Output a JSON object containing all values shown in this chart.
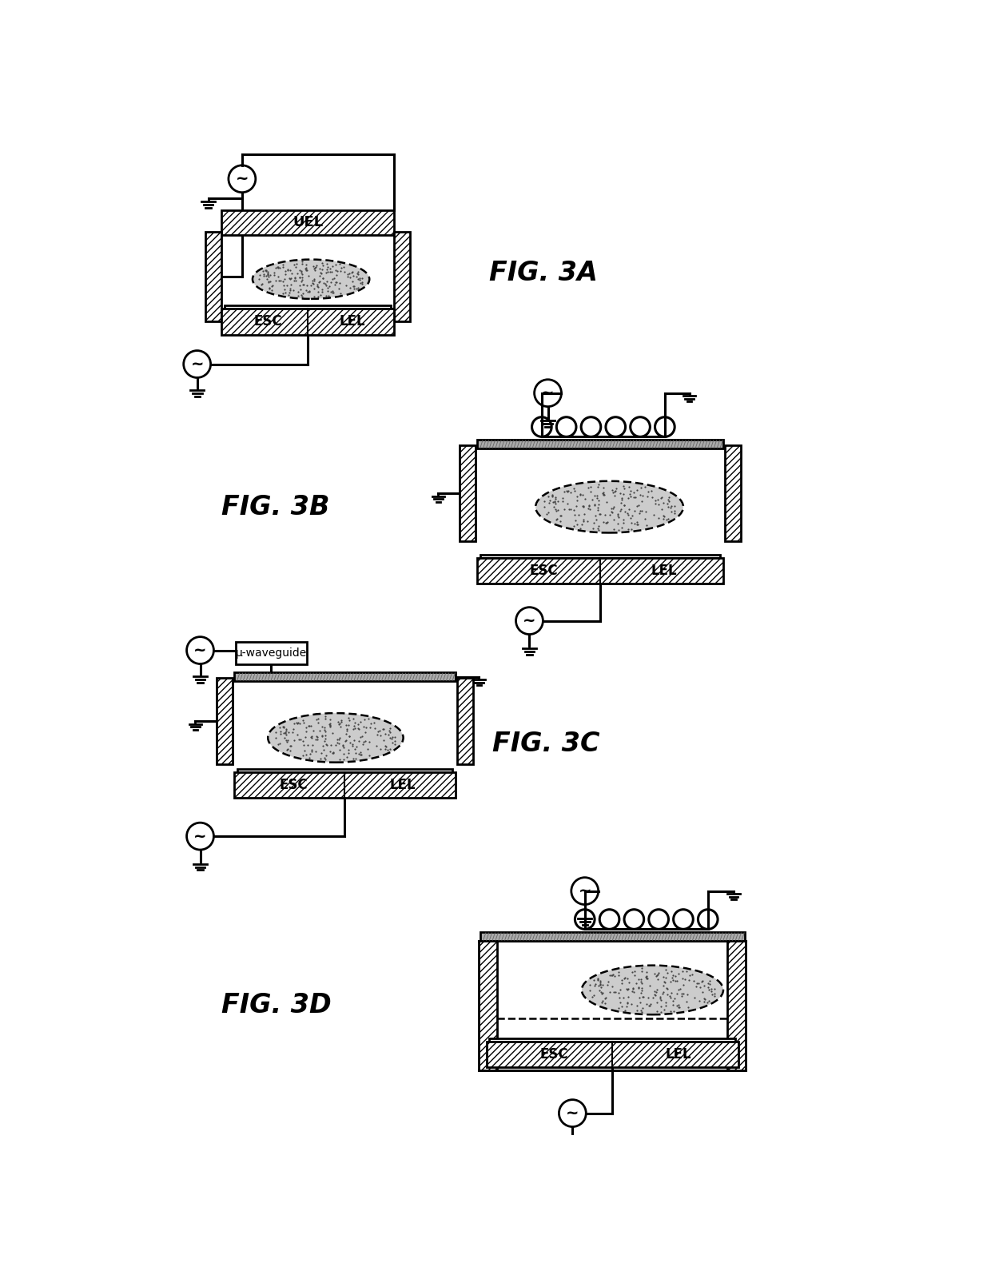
{
  "fig_labels": [
    "FIG. 3A",
    "FIG. 3B",
    "FIG. 3C",
    "FIG. 3D"
  ],
  "bg_color": "#ffffff",
  "line_color": "#000000",
  "hatch_pattern": "////",
  "icp_plate_color": "#b8b8b8",
  "plasma_fill_color": "#d0d0d0"
}
